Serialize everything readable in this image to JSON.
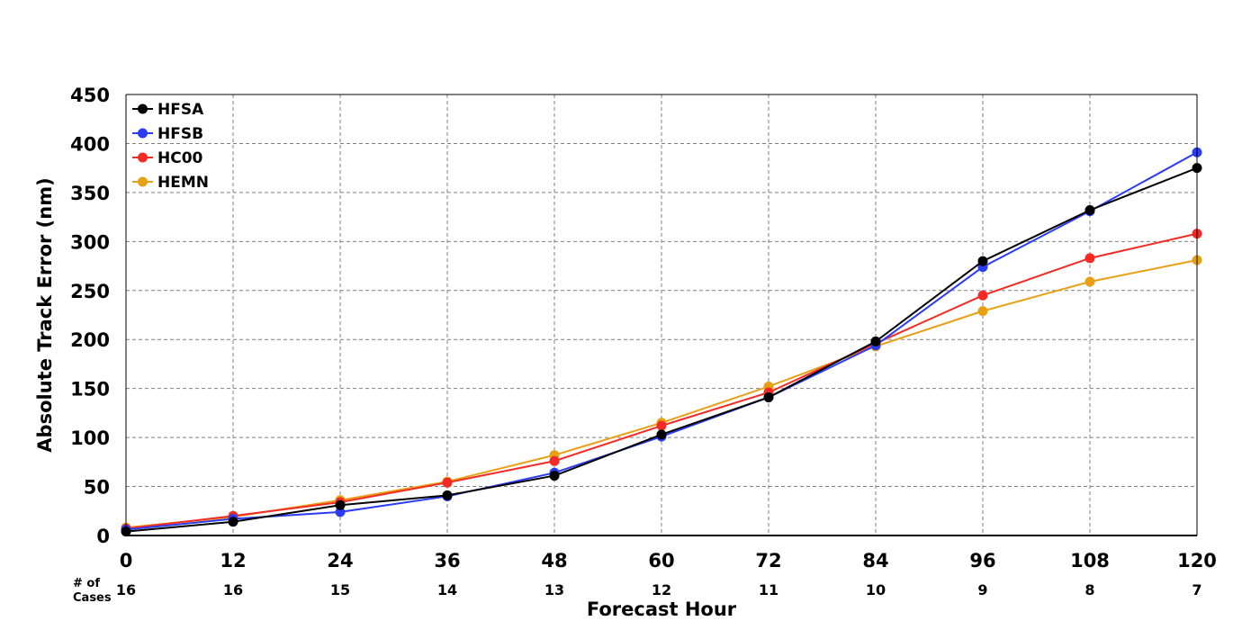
{
  "chart_data": {
    "type": "line",
    "title": "",
    "xlabel": "Forecast Hour",
    "ylabel": "Absolute Track Error (nm)",
    "x": [
      0,
      12,
      24,
      36,
      48,
      60,
      72,
      84,
      96,
      108,
      120
    ],
    "xlim": [
      0,
      120
    ],
    "ylim": [
      0,
      450
    ],
    "yticks": [
      0,
      50,
      100,
      150,
      200,
      250,
      300,
      350,
      400,
      450
    ],
    "grid": true,
    "legend_position": "top-left",
    "cases_label_line1": "# of",
    "cases_label_line2": "Cases",
    "cases": [
      16,
      16,
      15,
      14,
      13,
      12,
      11,
      10,
      9,
      8,
      7
    ],
    "series": [
      {
        "name": "HFSA",
        "color": "#000000",
        "values": [
          4,
          14,
          31,
          41,
          61,
          103,
          141,
          198,
          280,
          332,
          375
        ]
      },
      {
        "name": "HFSB",
        "color": "#2b3cf5",
        "values": [
          6,
          17,
          24,
          40,
          64,
          101,
          141,
          194,
          274,
          331,
          391
        ]
      },
      {
        "name": "HC00",
        "color": "#f52a24",
        "values": [
          7,
          20,
          34,
          54,
          76,
          112,
          146,
          196,
          245,
          283,
          308
        ]
      },
      {
        "name": "HEMN",
        "color": "#e8a013",
        "values": [
          8,
          19,
          36,
          55,
          82,
          115,
          152,
          193,
          229,
          259,
          281
        ]
      }
    ]
  }
}
